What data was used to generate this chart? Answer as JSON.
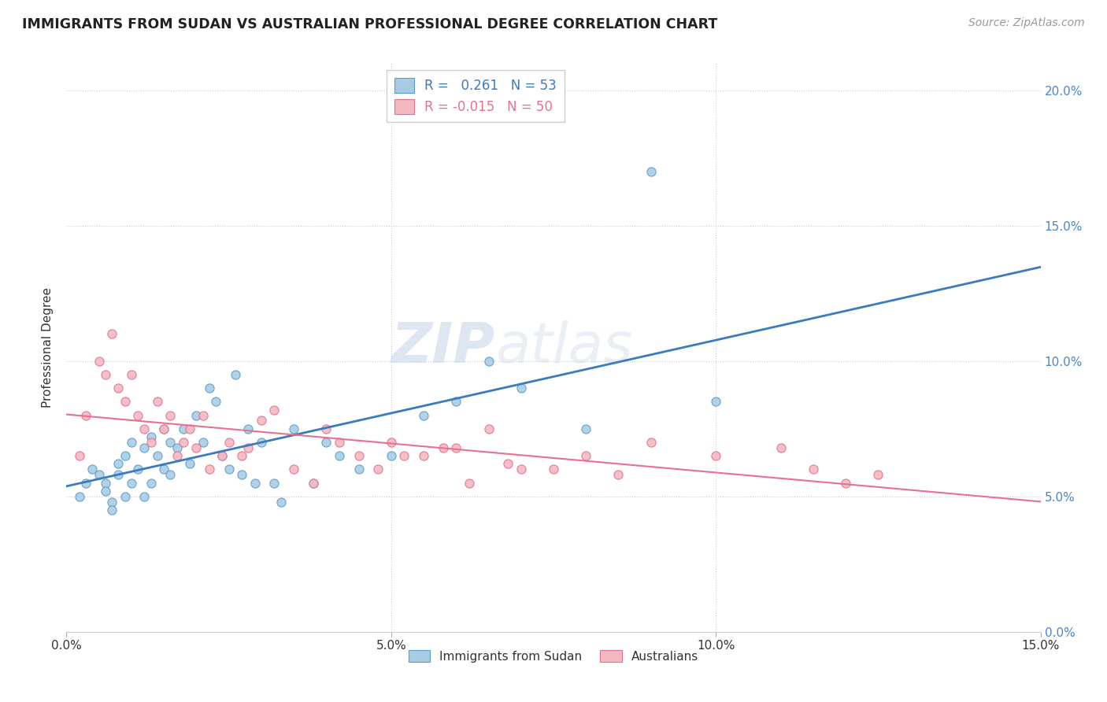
{
  "title": "IMMIGRANTS FROM SUDAN VS AUSTRALIAN PROFESSIONAL DEGREE CORRELATION CHART",
  "source": "Source: ZipAtlas.com",
  "ylabel": "Professional Degree",
  "xlim": [
    0.0,
    0.15
  ],
  "ylim": [
    0.0,
    0.21
  ],
  "xticks": [
    0.0,
    0.05,
    0.1,
    0.15
  ],
  "xtick_labels": [
    "0.0%",
    "5.0%",
    "10.0%",
    "15.0%"
  ],
  "yticks": [
    0.0,
    0.05,
    0.1,
    0.15,
    0.2
  ],
  "ytick_labels": [
    "0.0%",
    "5.0%",
    "10.0%",
    "15.0%",
    "20.0%"
  ],
  "blue_marker_color": "#a8cce4",
  "blue_edge_color": "#5b9dc9",
  "pink_marker_color": "#f4b8c1",
  "pink_edge_color": "#e07090",
  "blue_line_color": "#3a7bbf",
  "pink_line_color": "#e87090",
  "legend_r_blue": "0.261",
  "legend_n_blue": "53",
  "legend_r_pink": "-0.015",
  "legend_n_pink": "50",
  "blue_scatter_x": [
    0.002,
    0.003,
    0.004,
    0.005,
    0.006,
    0.006,
    0.007,
    0.007,
    0.008,
    0.008,
    0.009,
    0.009,
    0.01,
    0.01,
    0.011,
    0.012,
    0.012,
    0.013,
    0.013,
    0.014,
    0.015,
    0.015,
    0.016,
    0.016,
    0.017,
    0.018,
    0.019,
    0.02,
    0.021,
    0.022,
    0.023,
    0.024,
    0.025,
    0.026,
    0.027,
    0.028,
    0.029,
    0.03,
    0.032,
    0.033,
    0.035,
    0.038,
    0.04,
    0.042,
    0.045,
    0.05,
    0.055,
    0.06,
    0.065,
    0.07,
    0.08,
    0.09,
    0.1
  ],
  "blue_scatter_y": [
    0.05,
    0.055,
    0.06,
    0.058,
    0.055,
    0.052,
    0.048,
    0.045,
    0.062,
    0.058,
    0.065,
    0.05,
    0.07,
    0.055,
    0.06,
    0.068,
    0.05,
    0.072,
    0.055,
    0.065,
    0.075,
    0.06,
    0.07,
    0.058,
    0.068,
    0.075,
    0.062,
    0.08,
    0.07,
    0.09,
    0.085,
    0.065,
    0.06,
    0.095,
    0.058,
    0.075,
    0.055,
    0.07,
    0.055,
    0.048,
    0.075,
    0.055,
    0.07,
    0.065,
    0.06,
    0.065,
    0.08,
    0.085,
    0.1,
    0.09,
    0.075,
    0.17,
    0.085
  ],
  "pink_scatter_x": [
    0.002,
    0.003,
    0.005,
    0.006,
    0.007,
    0.008,
    0.009,
    0.01,
    0.011,
    0.012,
    0.013,
    0.014,
    0.015,
    0.016,
    0.017,
    0.018,
    0.019,
    0.02,
    0.021,
    0.022,
    0.024,
    0.025,
    0.027,
    0.03,
    0.032,
    0.035,
    0.038,
    0.04,
    0.045,
    0.05,
    0.055,
    0.06,
    0.065,
    0.07,
    0.08,
    0.09,
    0.1,
    0.11,
    0.115,
    0.12,
    0.125,
    0.028,
    0.042,
    0.048,
    0.052,
    0.058,
    0.062,
    0.068,
    0.075,
    0.085
  ],
  "pink_scatter_y": [
    0.065,
    0.08,
    0.1,
    0.095,
    0.11,
    0.09,
    0.085,
    0.095,
    0.08,
    0.075,
    0.07,
    0.085,
    0.075,
    0.08,
    0.065,
    0.07,
    0.075,
    0.068,
    0.08,
    0.06,
    0.065,
    0.07,
    0.065,
    0.078,
    0.082,
    0.06,
    0.055,
    0.075,
    0.065,
    0.07,
    0.065,
    0.068,
    0.075,
    0.06,
    0.065,
    0.07,
    0.065,
    0.068,
    0.06,
    0.055,
    0.058,
    0.068,
    0.07,
    0.06,
    0.065,
    0.068,
    0.055,
    0.062,
    0.06,
    0.058
  ]
}
